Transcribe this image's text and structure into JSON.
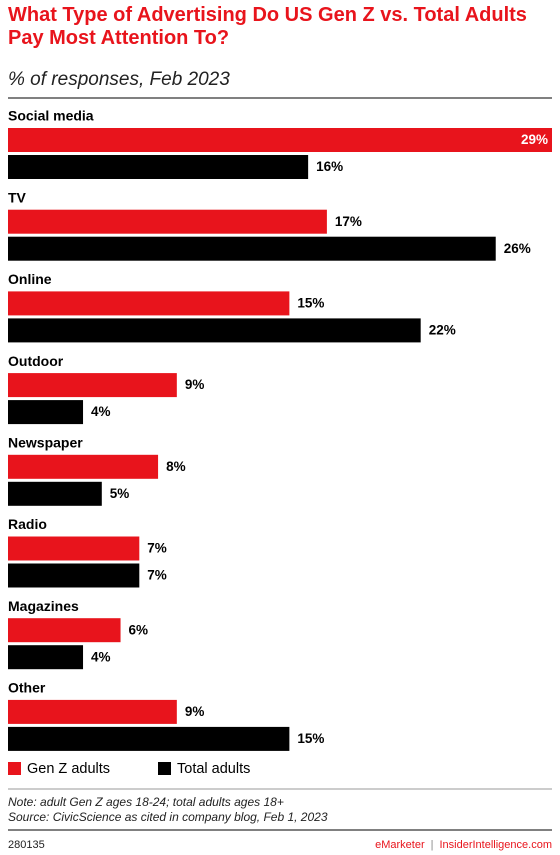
{
  "chart_data": {
    "type": "bar",
    "orientation": "horizontal",
    "title": "What Type of Advertising Do US Gen Z vs. Total Adults Pay Most Attention To?",
    "subtitle": "% of responses, Feb 2023",
    "categories": [
      "Social media",
      "TV",
      "Online",
      "Outdoor",
      "Newspaper",
      "Radio",
      "Magazines",
      "Other"
    ],
    "series": [
      {
        "name": "Gen Z adults",
        "color": "#e8141c",
        "values": [
          29,
          17,
          15,
          9,
          8,
          7,
          6,
          9
        ],
        "value_labels": [
          "29%",
          "17%",
          "15%",
          "9%",
          "8%",
          "7%",
          "6%",
          "9%"
        ]
      },
      {
        "name": "Total adults",
        "color": "#000000",
        "values": [
          16,
          26,
          22,
          4,
          5,
          7,
          4,
          15
        ],
        "value_labels": [
          "16%",
          "26%",
          "22%",
          "4%",
          "5%",
          "7%",
          "4%",
          "15%"
        ]
      }
    ],
    "notes": [
      "Note: adult Gen Z ages 18-24; total adults ages 18+",
      "Source: CivicScience as cited in company blog, Feb 1, 2023"
    ],
    "chart_id": "280135",
    "brand": "eMarketer",
    "separator": "|",
    "site": "InsiderIntelligence.com"
  }
}
